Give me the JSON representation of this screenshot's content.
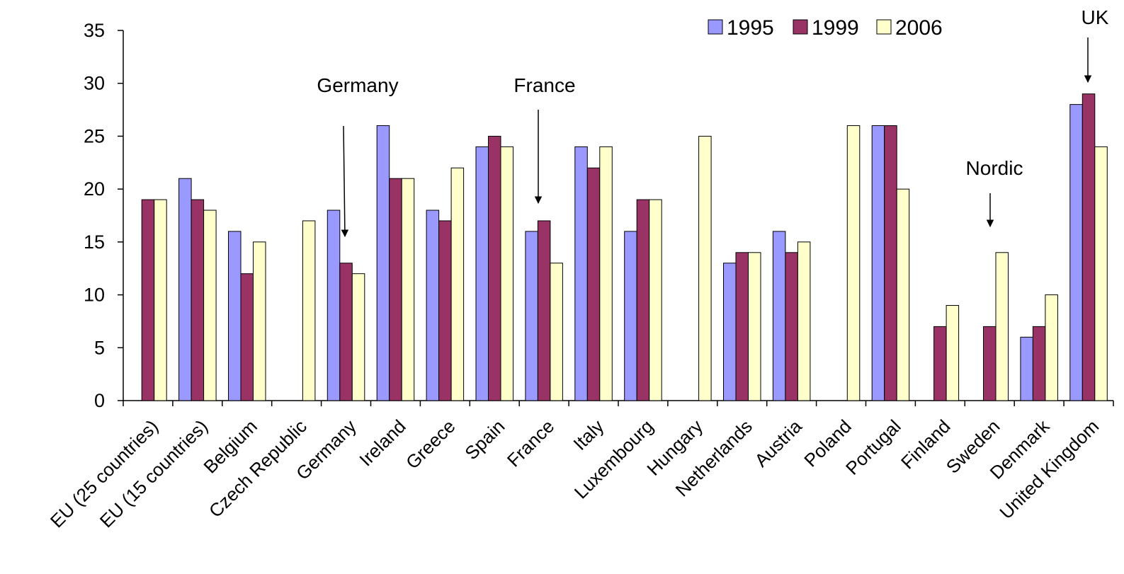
{
  "chart_data": {
    "type": "bar",
    "title": "",
    "xlabel": "",
    "ylabel": "",
    "ylim": [
      0,
      35
    ],
    "yticks": [
      0,
      5,
      10,
      15,
      20,
      25,
      30,
      35
    ],
    "grid": false,
    "legend_position": "top-right",
    "categories": [
      "EU (25 countries)",
      "EU (15 countries)",
      "Belgium",
      "Czech Republic",
      "Germany",
      "Ireland",
      "Greece",
      "Spain",
      "France",
      "Italy",
      "Luxembourg",
      "Hungary",
      "Netherlands",
      "Austria",
      "Poland",
      "Portugal",
      "Finland",
      "Sweden",
      "Denmark",
      "United Kingdom"
    ],
    "series": [
      {
        "name": "1995",
        "color": "#9999ff",
        "values": [
          null,
          21,
          16,
          null,
          18,
          26,
          18,
          24,
          16,
          24,
          16,
          null,
          13,
          16,
          null,
          26,
          null,
          null,
          6,
          28
        ]
      },
      {
        "name": "1999",
        "color": "#993366",
        "values": [
          19,
          19,
          12,
          null,
          13,
          21,
          17,
          25,
          17,
          22,
          19,
          null,
          14,
          14,
          null,
          26,
          7,
          7,
          7,
          29
        ]
      },
      {
        "name": "2006",
        "color": "#ffffcc",
        "values": [
          19,
          18,
          15,
          17,
          12,
          21,
          22,
          24,
          13,
          24,
          19,
          25,
          14,
          15,
          26,
          20,
          9,
          14,
          10,
          24
        ]
      }
    ],
    "annotations": [
      {
        "text": "Germany",
        "category": "Germany",
        "series": 1
      },
      {
        "text": "France",
        "category": "France",
        "series": 1
      },
      {
        "text": "Nordic",
        "category": "Sweden",
        "series": 1
      },
      {
        "text": "UK",
        "category": "United Kingdom",
        "series": 1
      }
    ]
  }
}
